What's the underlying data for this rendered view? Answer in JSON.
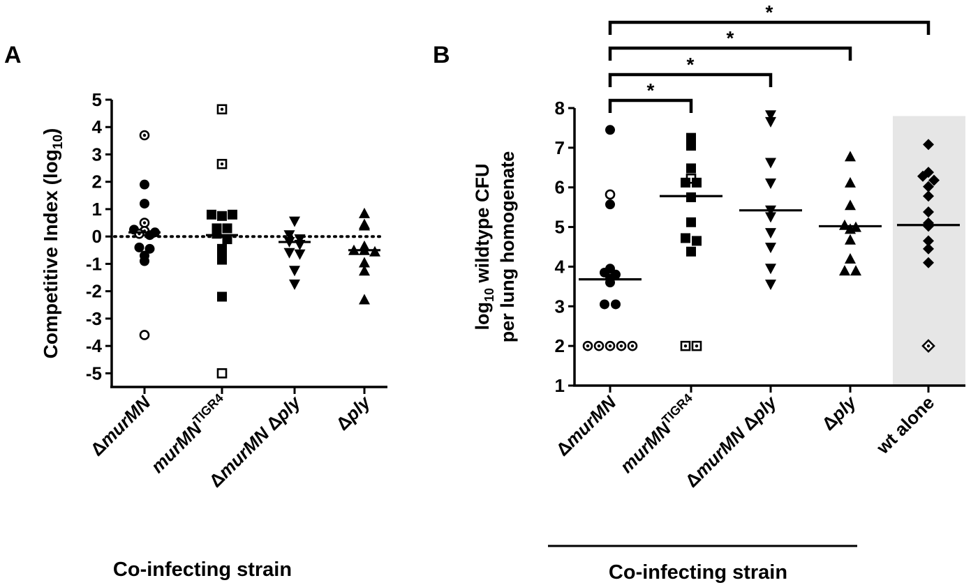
{
  "chart_data": [
    {
      "panel": "A",
      "type": "scatter",
      "ylabel": {
        "main": "Competitive Index (log",
        "sub": "10",
        "end": ")"
      },
      "xlabel": "Co-infecting strain",
      "ylim": [
        -5.5,
        5
      ],
      "yticks": [
        5,
        4,
        3,
        2,
        1,
        0,
        -1,
        -2,
        -3,
        -4,
        -5
      ],
      "reference_line": 0,
      "categories": [
        {
          "pre": "Δ",
          "it": "murMN",
          "sup": ""
        },
        {
          "pre": "",
          "it": "murMN",
          "sup": "TIGR4"
        },
        {
          "pre": "Δ",
          "it": "murMN",
          "mid": " Δ",
          "it2": "ply",
          "sup": ""
        },
        {
          "pre": "Δ",
          "it": "ply",
          "sup": ""
        }
      ],
      "series": [
        {
          "category": 0,
          "marker": "circle",
          "median": 0.15,
          "points": [
            {
              "y": 3.7,
              "style": "open-dot"
            },
            {
              "y": 1.9,
              "style": "filled"
            },
            {
              "y": 1.2,
              "style": "filled"
            },
            {
              "y": 0.5,
              "style": "open-dot"
            },
            {
              "y": 0.25,
              "style": "filled"
            },
            {
              "y": 0.2,
              "style": "open-dot"
            },
            {
              "y": 0.15,
              "style": "filled"
            },
            {
              "y": 0.1,
              "style": "open-dot"
            },
            {
              "y": 0.05,
              "style": "filled"
            },
            {
              "y": -0.4,
              "style": "filled"
            },
            {
              "y": -0.7,
              "style": "filled"
            },
            {
              "y": -0.9,
              "style": "filled"
            },
            {
              "y": -0.45,
              "style": "filled"
            },
            {
              "y": -3.6,
              "style": "open"
            }
          ]
        },
        {
          "category": 1,
          "marker": "square",
          "median": 0.05,
          "points": [
            {
              "y": 4.65,
              "style": "open-dot"
            },
            {
              "y": 2.65,
              "style": "open-dot"
            },
            {
              "y": 0.8,
              "style": "filled"
            },
            {
              "y": 0.75,
              "style": "filled"
            },
            {
              "y": 0.8,
              "style": "filled"
            },
            {
              "y": 0.3,
              "style": "filled"
            },
            {
              "y": 0.3,
              "style": "filled"
            },
            {
              "y": 0.1,
              "style": "filled"
            },
            {
              "y": -0.1,
              "style": "filled"
            },
            {
              "y": -0.45,
              "style": "filled"
            },
            {
              "y": -0.55,
              "style": "filled"
            },
            {
              "y": -0.85,
              "style": "filled"
            },
            {
              "y": -2.2,
              "style": "filled"
            },
            {
              "y": -5.0,
              "style": "open"
            }
          ]
        },
        {
          "category": 2,
          "marker": "triangle-down",
          "median": -0.2,
          "points": [
            {
              "y": 0.55,
              "style": "filled"
            },
            {
              "y": 0.05,
              "style": "filled"
            },
            {
              "y": -0.2,
              "style": "filled"
            },
            {
              "y": -0.1,
              "style": "filled"
            },
            {
              "y": -0.3,
              "style": "filled"
            },
            {
              "y": -0.6,
              "style": "filled"
            },
            {
              "y": -0.65,
              "style": "filled"
            },
            {
              "y": -1.25,
              "style": "filled"
            },
            {
              "y": -1.75,
              "style": "filled"
            }
          ]
        },
        {
          "category": 3,
          "marker": "triangle-up",
          "median": -0.5,
          "points": [
            {
              "y": 0.85,
              "style": "filled"
            },
            {
              "y": 0.45,
              "style": "filled"
            },
            {
              "y": 0.4,
              "style": "filled"
            },
            {
              "y": -0.35,
              "style": "filled"
            },
            {
              "y": -0.5,
              "style": "filled"
            },
            {
              "y": -0.5,
              "style": "filled"
            },
            {
              "y": -0.55,
              "style": "filled"
            },
            {
              "y": -0.95,
              "style": "filled"
            },
            {
              "y": -1.25,
              "style": "filled"
            },
            {
              "y": -2.3,
              "style": "filled"
            }
          ]
        }
      ]
    },
    {
      "panel": "B",
      "type": "scatter",
      "ylabel_lines": [
        {
          "pre": "log",
          "sub": "10",
          "post": " wildtype CFU"
        },
        {
          "pre": "per lung homogenate",
          "sub": "",
          "post": ""
        }
      ],
      "xlabel": "Co-infecting strain",
      "ylim": [
        1,
        8
      ],
      "yticks": [
        8,
        7,
        6,
        5,
        4,
        3,
        2,
        1
      ],
      "shaded_category": 4,
      "categories": [
        {
          "pre": "Δ",
          "it": "murMN",
          "sup": ""
        },
        {
          "pre": "",
          "it": "murMN",
          "sup": "TIGR4"
        },
        {
          "pre": "Δ",
          "it": "murMN",
          "mid": " Δ",
          "it2": "ply",
          "sup": ""
        },
        {
          "pre": "Δ",
          "it": "ply",
          "sup": ""
        },
        {
          "pre": "",
          "plain": "wt alone",
          "sup": ""
        }
      ],
      "significance": [
        {
          "from": 0,
          "to": 1,
          "label": "*"
        },
        {
          "from": 0,
          "to": 2,
          "label": "*"
        },
        {
          "from": 0,
          "to": 3,
          "label": "*"
        },
        {
          "from": 0,
          "to": 4,
          "label": "*"
        }
      ],
      "series": [
        {
          "category": 0,
          "marker": "circle",
          "median": 3.68,
          "points": [
            {
              "y": 7.45,
              "style": "filled"
            },
            {
              "y": 5.82,
              "style": "open"
            },
            {
              "y": 5.57,
              "style": "filled"
            },
            {
              "y": 3.95,
              "style": "filled"
            },
            {
              "y": 3.85,
              "style": "filled"
            },
            {
              "y": 3.8,
              "style": "filled"
            },
            {
              "y": 3.7,
              "style": "filled"
            },
            {
              "y": 3.6,
              "style": "filled"
            },
            {
              "y": 3.05,
              "style": "filled"
            },
            {
              "y": 3.05,
              "style": "filled"
            },
            {
              "y": 2.0,
              "style": "open-dot"
            },
            {
              "y": 2.0,
              "style": "open-dot"
            },
            {
              "y": 2.0,
              "style": "open-dot"
            },
            {
              "y": 2.0,
              "style": "open-dot"
            },
            {
              "y": 2.0,
              "style": "open-dot"
            }
          ]
        },
        {
          "category": 1,
          "marker": "square",
          "median": 5.78,
          "points": [
            {
              "y": 7.25,
              "style": "filled"
            },
            {
              "y": 7.05,
              "style": "filled"
            },
            {
              "y": 6.48,
              "style": "filled"
            },
            {
              "y": 6.22,
              "style": "open"
            },
            {
              "y": 6.12,
              "style": "filled"
            },
            {
              "y": 6.12,
              "style": "filled"
            },
            {
              "y": 5.75,
              "style": "filled"
            },
            {
              "y": 5.12,
              "style": "filled"
            },
            {
              "y": 4.72,
              "style": "filled"
            },
            {
              "y": 4.65,
              "style": "filled"
            },
            {
              "y": 4.38,
              "style": "filled"
            },
            {
              "y": 2.0,
              "style": "open-dot"
            },
            {
              "y": 2.0,
              "style": "open-dot"
            }
          ]
        },
        {
          "category": 2,
          "marker": "triangle-down",
          "median": 5.42,
          "points": [
            {
              "y": 7.82,
              "style": "filled"
            },
            {
              "y": 7.65,
              "style": "filled"
            },
            {
              "y": 6.62,
              "style": "filled"
            },
            {
              "y": 6.1,
              "style": "filled"
            },
            {
              "y": 5.42,
              "style": "filled"
            },
            {
              "y": 5.25,
              "style": "filled"
            },
            {
              "y": 4.85,
              "style": "filled"
            },
            {
              "y": 4.48,
              "style": "filled"
            },
            {
              "y": 3.95,
              "style": "filled"
            },
            {
              "y": 3.55,
              "style": "filled"
            }
          ]
        },
        {
          "category": 3,
          "marker": "triangle-up",
          "median": 5.02,
          "points": [
            {
              "y": 6.78,
              "style": "filled"
            },
            {
              "y": 6.12,
              "style": "filled"
            },
            {
              "y": 5.55,
              "style": "filled"
            },
            {
              "y": 5.05,
              "style": "filled"
            },
            {
              "y": 5.0,
              "style": "filled"
            },
            {
              "y": 4.95,
              "style": "filled"
            },
            {
              "y": 4.68,
              "style": "filled"
            },
            {
              "y": 4.2,
              "style": "filled"
            },
            {
              "y": 3.9,
              "style": "filled"
            },
            {
              "y": 3.9,
              "style": "filled"
            }
          ]
        },
        {
          "category": 4,
          "marker": "diamond",
          "median": 5.05,
          "points": [
            {
              "y": 7.08,
              "style": "filled"
            },
            {
              "y": 6.38,
              "style": "filled"
            },
            {
              "y": 6.28,
              "style": "filled"
            },
            {
              "y": 6.18,
              "style": "filled"
            },
            {
              "y": 6.02,
              "style": "filled"
            },
            {
              "y": 5.78,
              "style": "filled"
            },
            {
              "y": 5.38,
              "style": "filled"
            },
            {
              "y": 5.1,
              "style": "filled"
            },
            {
              "y": 5.02,
              "style": "filled"
            },
            {
              "y": 4.65,
              "style": "filled"
            },
            {
              "y": 4.45,
              "style": "filled"
            },
            {
              "y": 4.1,
              "style": "filled"
            },
            {
              "y": 2.0,
              "style": "open-dot"
            }
          ]
        }
      ]
    }
  ],
  "panel_labels": [
    "A",
    "B"
  ],
  "colors": {
    "ink": "#000000",
    "shade": "#e6e6e6",
    "background": "#ffffff"
  }
}
